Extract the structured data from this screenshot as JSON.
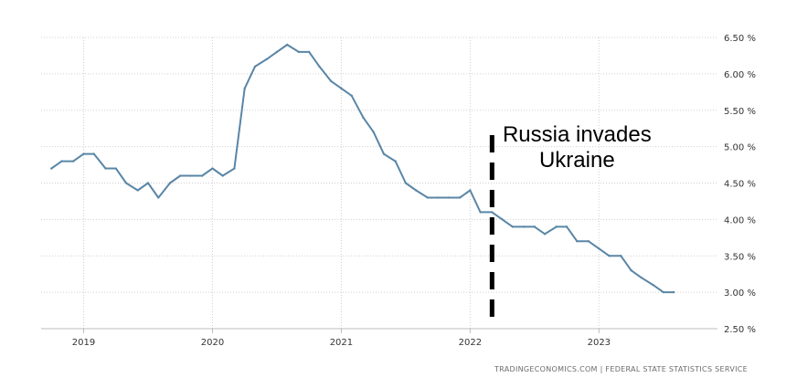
{
  "chart_data": {
    "type": "line",
    "title": "",
    "xlabel": "",
    "ylabel": "",
    "ylim": [
      2.5,
      6.5
    ],
    "y_ticks": [
      2.5,
      3.0,
      3.5,
      4.0,
      4.5,
      5.0,
      5.5,
      6.0,
      6.5
    ],
    "y_tick_labels": [
      "2.50 %",
      "3.00 %",
      "3.50 %",
      "4.00 %",
      "4.50 %",
      "5.00 %",
      "5.50 %",
      "6.00 %",
      "6.50 %"
    ],
    "x_tick_labels": [
      "2019",
      "2020",
      "2021",
      "2022",
      "2023"
    ],
    "x_ticks": [
      2019.0,
      2020.0,
      2021.0,
      2022.0,
      2023.0
    ],
    "xlim": [
      2018.67,
      2023.92
    ],
    "grid": true,
    "line_color": "#5a86a6",
    "series": [
      {
        "name": "",
        "x": [
          2018.75,
          2018.83,
          2018.92,
          2019.0,
          2019.08,
          2019.17,
          2019.25,
          2019.33,
          2019.42,
          2019.5,
          2019.58,
          2019.67,
          2019.75,
          2019.83,
          2019.92,
          2020.0,
          2020.08,
          2020.17,
          2020.25,
          2020.33,
          2020.42,
          2020.5,
          2020.58,
          2020.67,
          2020.75,
          2020.83,
          2020.92,
          2021.0,
          2021.08,
          2021.17,
          2021.25,
          2021.33,
          2021.42,
          2021.5,
          2021.58,
          2021.67,
          2021.75,
          2021.83,
          2021.92,
          2022.0,
          2022.08,
          2022.17,
          2022.25,
          2022.33,
          2022.42,
          2022.5,
          2022.58,
          2022.67,
          2022.75,
          2022.83,
          2022.92,
          2023.0,
          2023.08,
          2023.17,
          2023.25,
          2023.33,
          2023.42,
          2023.5,
          2023.58
        ],
        "values": [
          4.7,
          4.8,
          4.8,
          4.9,
          4.9,
          4.7,
          4.7,
          4.5,
          4.4,
          4.5,
          4.3,
          4.5,
          4.6,
          4.6,
          4.6,
          4.7,
          4.6,
          4.7,
          5.8,
          6.1,
          6.2,
          6.3,
          6.4,
          6.3,
          6.3,
          6.1,
          5.9,
          5.8,
          5.7,
          5.4,
          5.2,
          4.9,
          4.8,
          4.5,
          4.4,
          4.3,
          4.3,
          4.3,
          4.3,
          4.4,
          4.1,
          4.1,
          4.0,
          3.9,
          3.9,
          3.9,
          3.8,
          3.9,
          3.9,
          3.7,
          3.7,
          3.6,
          3.5,
          3.5,
          3.3,
          3.2,
          3.1,
          3.0,
          3.0
        ]
      }
    ],
    "annotations": [
      {
        "label_lines": [
          "Russia invades",
          "Ukraine"
        ],
        "x": 2022.17,
        "style": "dashed-vertical-line",
        "color": "#000000"
      }
    ],
    "source": "TRADINGECONOMICS.COM  |  FEDERAL STATE STATISTICS SERVICE"
  }
}
